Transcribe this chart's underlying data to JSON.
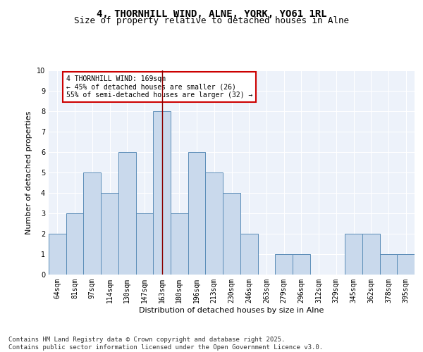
{
  "title_line1": "4, THORNHILL WIND, ALNE, YORK, YO61 1RL",
  "title_line2": "Size of property relative to detached houses in Alne",
  "xlabel": "Distribution of detached houses by size in Alne",
  "ylabel": "Number of detached properties",
  "categories": [
    "64sqm",
    "81sqm",
    "97sqm",
    "114sqm",
    "130sqm",
    "147sqm",
    "163sqm",
    "180sqm",
    "196sqm",
    "213sqm",
    "230sqm",
    "246sqm",
    "263sqm",
    "279sqm",
    "296sqm",
    "312sqm",
    "329sqm",
    "345sqm",
    "362sqm",
    "378sqm",
    "395sqm"
  ],
  "values": [
    2,
    3,
    5,
    4,
    6,
    3,
    8,
    3,
    6,
    5,
    4,
    2,
    0,
    1,
    1,
    0,
    0,
    2,
    2,
    1,
    1
  ],
  "bar_color": "#c9d9ec",
  "bar_edge_color": "#5b8db8",
  "highlight_bar_index": 6,
  "highlight_line_color": "#8b0000",
  "ylim": [
    0,
    10
  ],
  "yticks": [
    0,
    1,
    2,
    3,
    4,
    5,
    6,
    7,
    8,
    9,
    10
  ],
  "background_color": "#edf2fa",
  "grid_color": "#ffffff",
  "annotation_text": "4 THORNHILL WIND: 169sqm\n← 45% of detached houses are smaller (26)\n55% of semi-detached houses are larger (32) →",
  "annotation_box_color": "#ffffff",
  "annotation_box_edge": "#cc0000",
  "footer_text": "Contains HM Land Registry data © Crown copyright and database right 2025.\nContains public sector information licensed under the Open Government Licence v3.0.",
  "title_fontsize": 10,
  "subtitle_fontsize": 9,
  "axis_label_fontsize": 8,
  "tick_fontsize": 7,
  "annotation_fontsize": 7,
  "footer_fontsize": 6.5
}
